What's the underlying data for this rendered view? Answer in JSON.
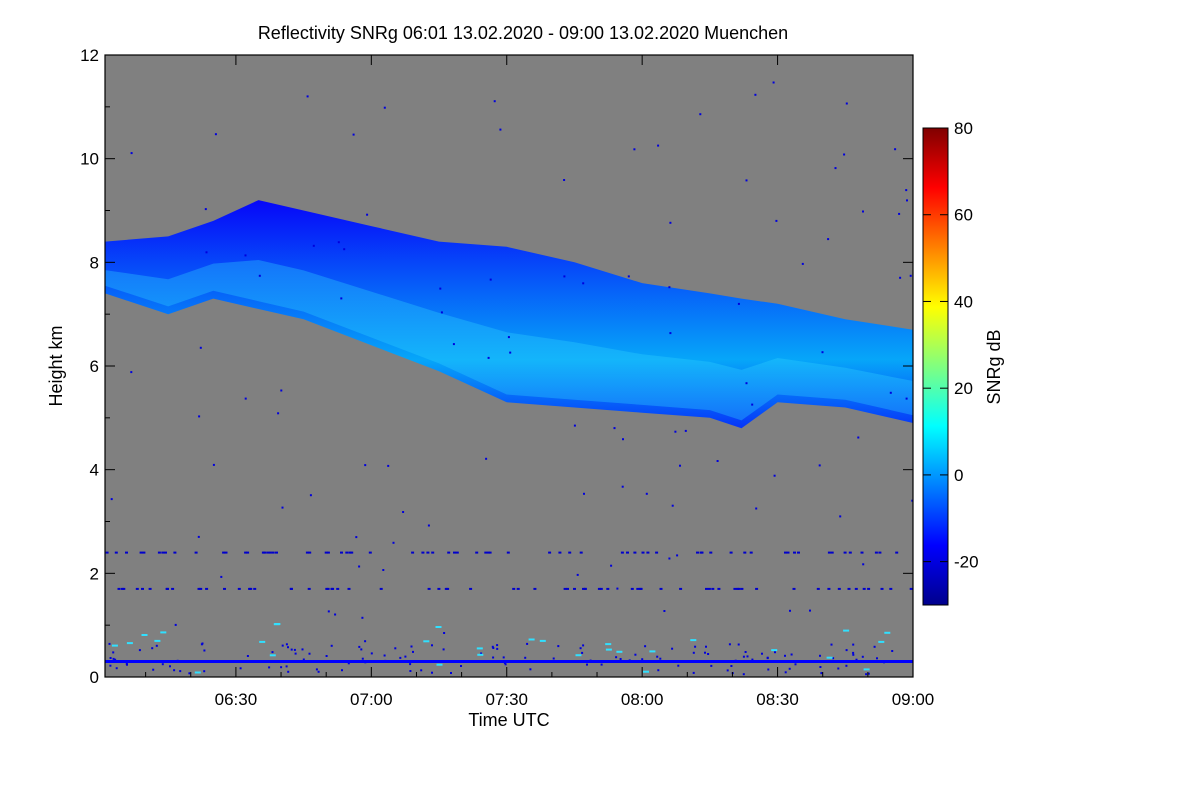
{
  "chart_data": {
    "type": "heatmap",
    "title": "Reflectivity SNRg   06:01 13.02.2020 - 09:00 13.02.2020 Muenchen",
    "xlabel": "Time UTC",
    "ylabel": "Height km",
    "x_range": [
      "06:01",
      "09:00"
    ],
    "x_ticks": [
      "06:30",
      "07:00",
      "07:30",
      "08:00",
      "08:30",
      "09:00"
    ],
    "ylim": [
      0,
      12
    ],
    "y_ticks": [
      "0",
      "2",
      "4",
      "6",
      "8",
      "10",
      "12"
    ],
    "no_data_color": "#808080",
    "colorbar": {
      "label": "SNRg dB",
      "range": [
        -30,
        80
      ],
      "ticks": [
        "-20",
        "0",
        "20",
        "40",
        "60",
        "80"
      ],
      "colors": [
        "#00008c",
        "#0000ff",
        "#0080ff",
        "#00ffff",
        "#80ff80",
        "#ffff00",
        "#ff8000",
        "#ff0000",
        "#800000"
      ]
    },
    "cloud_layer": {
      "times": [
        "06:01",
        "06:15",
        "06:25",
        "06:35",
        "06:45",
        "07:00",
        "07:15",
        "07:30",
        "07:45",
        "08:00",
        "08:15",
        "08:22",
        "08:30",
        "08:45",
        "09:00"
      ],
      "top_km": [
        8.4,
        8.5,
        8.8,
        9.2,
        9.0,
        8.7,
        8.4,
        8.3,
        8.0,
        7.6,
        7.4,
        7.3,
        7.2,
        6.9,
        6.7
      ],
      "base_km": [
        7.4,
        7.0,
        7.3,
        7.1,
        6.9,
        6.4,
        5.9,
        5.3,
        5.2,
        5.1,
        5.0,
        4.8,
        5.3,
        5.2,
        4.9
      ],
      "snr_db_range": [
        -25,
        5
      ]
    },
    "ground_layer": {
      "height_km": 0.3,
      "snr_db": -20
    }
  }
}
